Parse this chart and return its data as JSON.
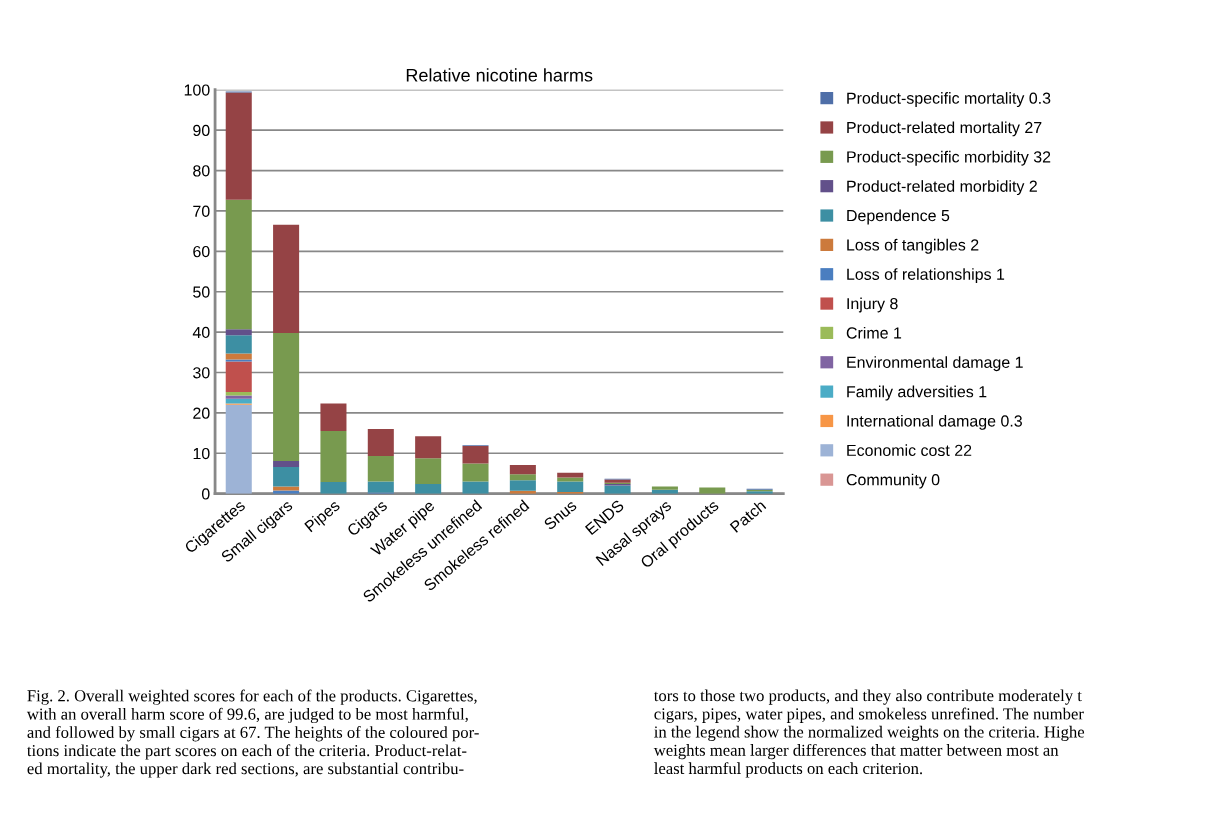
{
  "chart_data": {
    "type": "bar",
    "title": "Relative nicotine harms",
    "stacked": true,
    "categories": [
      "Cigarettes",
      "Small cigars",
      "Pipes",
      "Cigars",
      "Water pipe",
      "Smokeless unrefined",
      "Smokeless refined",
      "Snus",
      "ENDS",
      "Nasal sprays",
      "Oral products",
      "Patch"
    ],
    "series": [
      {
        "name": "Community 0",
        "color": "#d99694",
        "values": [
          0,
          0,
          0,
          0,
          0,
          0,
          0,
          0,
          0,
          0,
          0,
          0
        ]
      },
      {
        "name": "Economic cost 22",
        "color": "#9db3d6",
        "values": [
          22,
          0,
          0,
          0,
          0,
          0,
          0,
          0,
          0,
          0,
          0,
          0
        ]
      },
      {
        "name": "International damage 0.3",
        "color": "#f79646",
        "values": [
          0.3,
          0,
          0,
          0,
          0,
          0,
          0,
          0,
          0,
          0,
          0,
          0
        ]
      },
      {
        "name": "Family adversities 1",
        "color": "#4bacc6",
        "values": [
          1.2,
          0,
          0,
          0,
          0,
          0,
          0,
          0,
          0,
          0,
          0,
          0
        ]
      },
      {
        "name": "Environmental damage 1",
        "color": "#8064a2",
        "values": [
          0.8,
          0,
          0,
          0,
          0,
          0,
          0,
          0,
          0,
          0,
          0,
          0
        ]
      },
      {
        "name": "Crime 1",
        "color": "#9bbb59",
        "values": [
          0.9,
          0,
          0,
          0,
          0,
          0,
          0,
          0,
          0,
          0,
          0,
          0
        ]
      },
      {
        "name": "Injury 8",
        "color": "#c0504d",
        "values": [
          7.5,
          0,
          0,
          0,
          0,
          0,
          0,
          0,
          0,
          0,
          0,
          0
        ]
      },
      {
        "name": "Loss of relationships 1",
        "color": "#4a7ec0",
        "values": [
          0.5,
          0.8,
          0,
          0.3,
          0,
          0,
          0,
          0,
          null,
          0,
          0,
          0
        ]
      },
      {
        "name": "Loss of tangibles 2",
        "color": "#cc7a3c",
        "values": [
          1.5,
          1.0,
          0,
          0,
          0,
          0,
          0.7,
          0.4,
          0,
          0,
          0,
          0
        ]
      },
      {
        "name": "Dependence 5",
        "color": "#3d8fa3",
        "values": [
          4.5,
          4.8,
          2.9,
          2.7,
          2.4,
          3.0,
          2.6,
          2.6,
          2.0,
          1.0,
          null,
          0.6
        ]
      },
      {
        "name": "Product-related morbidity 2",
        "color": "#62508a",
        "values": [
          1.5,
          1.5,
          0,
          0,
          0,
          0,
          0,
          0,
          0.4,
          0,
          0,
          0
        ]
      },
      {
        "name": "Product-specific morbidity 32",
        "color": "#789a4f",
        "values": [
          32.1,
          31.7,
          12.6,
          6.3,
          6.4,
          4.5,
          1.5,
          1.0,
          0.3,
          0.8,
          1.5,
          0.4
        ]
      },
      {
        "name": "Product-related mortality 27",
        "color": "#954345",
        "values": [
          26.5,
          26.8,
          6.8,
          6.7,
          5.4,
          4.3,
          2.3,
          1.2,
          0.8,
          0,
          0,
          0
        ]
      },
      {
        "name": "Product-specific mortality 0.3",
        "color": "#4f6fa8",
        "values": [
          0.3,
          0,
          0,
          0,
          0,
          0.2,
          0,
          0,
          0.2,
          0,
          0,
          0.2
        ]
      }
    ],
    "ylim": [
      0,
      100
    ],
    "yticks": [
      0,
      10,
      20,
      30,
      40,
      50,
      60,
      70,
      80,
      90,
      100
    ],
    "grid": "y",
    "legend": "right",
    "annotations": [
      "Fig. 2. Overall weighted scores for each of the products. Cigarettes,\nwith an overall harm score of 99.6, are judged to be most harmful,\nand followed by small cigars at 67. The heights of the coloured por-\ntions indicate the part scores on each of the criteria. Product-relat-\ned mortality, the upper dark red sections, are substantial contribu-",
      "tors to those two products, and they also contribute moderately t\ncigars, pipes, water pipes, and smokeless unrefined. The number\nin the legend show the normalized weights on the criteria. Highe\nweights mean larger differences that matter between most an\nleast harmful products on each criterion."
    ]
  }
}
